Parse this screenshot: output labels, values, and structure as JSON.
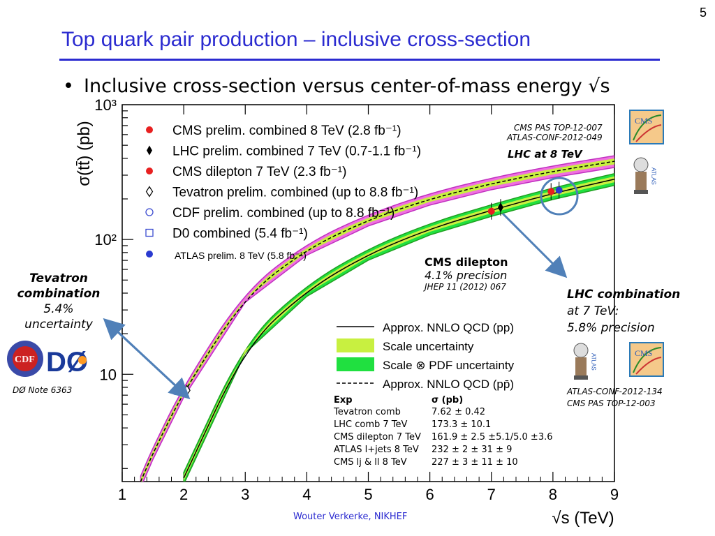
{
  "slide_number": "5",
  "title": "Top quark pair production – inclusive cross-section",
  "bullet": "Inclusive cross-section versus center-of-mass energy √s",
  "chart_data": {
    "type": "line",
    "ylabel": "σ(tt̄) (pb)",
    "xlabel": "√s (TeV)",
    "xlim": [
      1,
      9
    ],
    "ylim": [
      1.6,
      1000
    ],
    "y_scale": "log",
    "x_ticks": [
      "1",
      "2",
      "3",
      "4",
      "5",
      "6",
      "7",
      "8",
      "9"
    ],
    "y_ticks": [
      {
        "value": 10,
        "label": "10"
      },
      {
        "value": 100,
        "label": "10²"
      },
      {
        "value": 1000,
        "label": "10³"
      }
    ],
    "legend_position": "top-left",
    "legend": [
      {
        "marker": "red-dot",
        "label": "CMS prelim. combined 8 TeV (2.8 fb⁻¹)"
      },
      {
        "marker": "black-diamond",
        "label": "LHC prelim. combined 7 TeV (0.7-1.1 fb⁻¹)"
      },
      {
        "marker": "red-dot",
        "label": "CMS dilepton 7 TeV (2.3 fb⁻¹)"
      },
      {
        "marker": "open-diamond",
        "label": "Tevatron prelim. combined (up to 8.8 fb⁻¹)"
      },
      {
        "marker": "open-circle",
        "label": "CDF prelim. combined (up to 8.8 fb⁻¹)"
      },
      {
        "marker": "open-square",
        "label": "D0 combined (5.4 fb⁻¹)"
      },
      {
        "marker": "blue-dot",
        "label": "ATLAS prelim. 8 TeV (5.8 fb⁻¹)"
      }
    ],
    "band_legend": [
      {
        "style": "solid-line",
        "label": "Approx. NNLO QCD (pp)"
      },
      {
        "style": "yellow-band",
        "label": "Scale uncertainty"
      },
      {
        "style": "green-band",
        "label": "Scale ⊗ PDF uncertainty"
      },
      {
        "style": "dashed-line",
        "label": "Approx. NNLO QCD (pp̄)"
      }
    ],
    "series": [
      {
        "name": "Approx. NNLO QCD (pp)",
        "x": [
          2.0,
          3,
          4,
          5,
          6,
          7,
          8,
          9
        ],
        "y": [
          1.7,
          16,
          42,
          78,
          120,
          165,
          220,
          280
        ]
      },
      {
        "name": "Approx. NNLO QCD (pp̄)",
        "x": [
          1.3,
          1.5,
          2.0,
          3,
          4,
          5,
          6,
          7,
          8,
          9
        ],
        "y": [
          1.6,
          2.6,
          7.5,
          38,
          85,
          140,
          200,
          260,
          320,
          380
        ]
      }
    ],
    "points": [
      {
        "label": "Tevatron",
        "x": 1.96,
        "y": 7.6,
        "marker": "open-diamond"
      },
      {
        "label": "CDF",
        "x": 1.96,
        "y": 7.5,
        "marker": "open-circle"
      },
      {
        "label": "D0",
        "x": 1.96,
        "y": 7.6,
        "marker": "open-square"
      },
      {
        "label": "CMS dilepton 7 TeV",
        "x": 7,
        "y": 162,
        "marker": "red-dot"
      },
      {
        "label": "LHC comb 7 TeV",
        "x": 7.15,
        "y": 173,
        "marker": "black-diamond"
      },
      {
        "label": "CMS 8 TeV",
        "x": 7.97,
        "y": 227,
        "marker": "red-dot"
      },
      {
        "label": "ATLAS 8 TeV",
        "x": 8.1,
        "y": 232,
        "marker": "blue-dot"
      }
    ]
  },
  "annotations": {
    "cms_refs_top": [
      "CMS PAS TOP-12-007",
      "ATLAS-CONF-2012-049"
    ],
    "lhc8": "LHC at 8 TeV",
    "cms_dilepton": {
      "title": "CMS dilepton",
      "precision": "4.1% precision",
      "ref": "JHEP 11 (2012) 067"
    },
    "tevatron": {
      "line1": "Tevatron",
      "line2": "combination",
      "line3": "5.4%",
      "line4": "uncertainty"
    },
    "d0_note": "DØ Note 6363",
    "lhc_comb": {
      "title": "LHC combination",
      "line2": "at 7 TeV:",
      "line3": "5.8% precision"
    },
    "refs_bottom": [
      "ATLAS-CONF-2012-134",
      "CMS PAS TOP-12-003"
    ]
  },
  "logos": {
    "cms": "CMS",
    "atlas": "ATLAS",
    "cdf": "CDF",
    "d0": "DØ"
  },
  "table": {
    "headers": [
      "Exp",
      "σ (pb)"
    ],
    "rows": [
      [
        "Tevatron comb",
        "7.62 ± 0.42"
      ],
      [
        "LHC comb 7 TeV",
        "173.3 ± 10.1"
      ],
      [
        "CMS dilepton 7 TeV",
        "161.9 ± 2.5 ±5.1/5.0 ±3.6"
      ],
      [
        "ATLAS l+jets 8 TeV",
        "232 ± 2 ± 31 ± 9"
      ],
      [
        "CMS lj & ll 8 TeV",
        "227 ± 3 ± 11 ± 10"
      ]
    ]
  },
  "footer": "Wouter Verkerke, NIKHEF"
}
